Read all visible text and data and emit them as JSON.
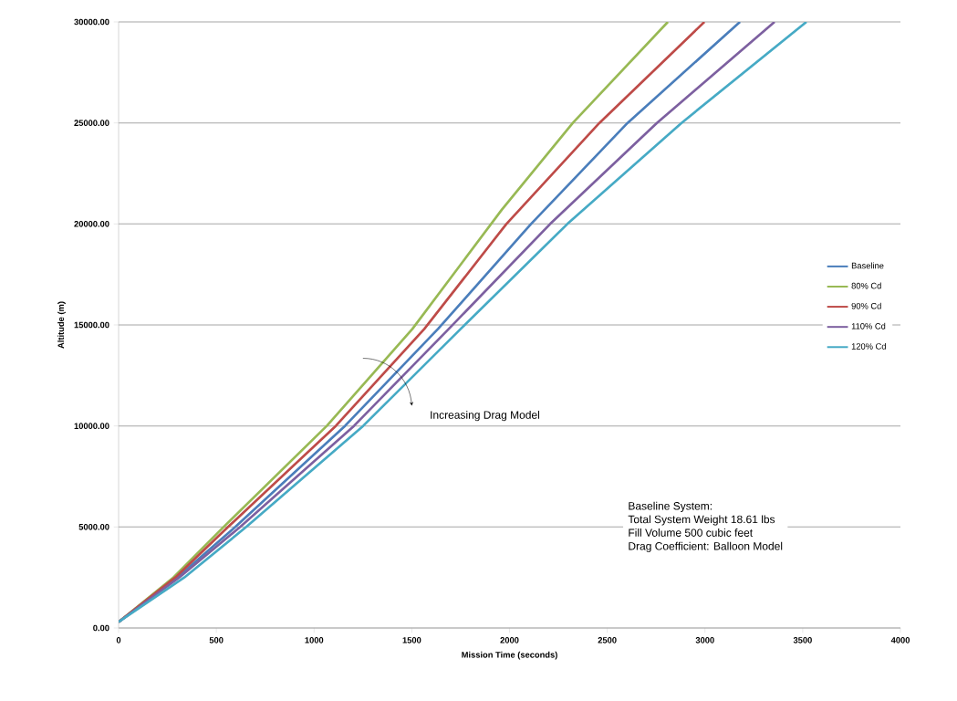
{
  "chart_data": {
    "type": "line",
    "xlabel": "Mission Time (seconds)",
    "ylabel": "Altitude (m)",
    "xlim": [
      0,
      4000
    ],
    "xticks": [
      0,
      500,
      1000,
      1500,
      2000,
      2500,
      3000,
      3500,
      4000
    ],
    "ylim": [
      0,
      30000
    ],
    "yticks": [
      {
        "value": 0,
        "label": "0.00"
      },
      {
        "value": 5000,
        "label": "5000.00"
      },
      {
        "value": 10000,
        "label": "10000.00"
      },
      {
        "value": 15000,
        "label": "15000.00"
      },
      {
        "value": 20000,
        "label": "20000.00"
      },
      {
        "value": 25000,
        "label": "25000.00"
      },
      {
        "value": 30000,
        "label": "30000.00"
      }
    ],
    "grid": "y",
    "legend": "right",
    "marker": "none",
    "line_style": "solid",
    "annotations": [
      "Increasing Drag Model",
      "Baseline System:",
      "Total System  Weight 18.61 lbs",
      "Fill Volume 500  cubic feet",
      "Drag Coefficient: Balloon Model"
    ],
    "series": [
      {
        "name": "Baseline",
        "color": "#4a7ebb",
        "x": [
          0,
          300,
          597,
          1158,
          1634,
          2110,
          2604,
          3179
        ],
        "values": [
          300,
          2500,
          5000,
          10000,
          14800,
          20000,
          25000,
          30000
        ]
      },
      {
        "name": "80% Cd",
        "color": "#98b954",
        "x": [
          0,
          280,
          537,
          1065,
          1503,
          1960,
          2324,
          2810
        ],
        "values": [
          300,
          2500,
          5000,
          10000,
          14800,
          20700,
          25000,
          30000
        ]
      },
      {
        "name": "90% Cd",
        "color": "#be4b48",
        "x": [
          0,
          290,
          560,
          1111,
          1564,
          1984,
          2460,
          2997
        ],
        "values": [
          300,
          2500,
          5000,
          10000,
          14800,
          20000,
          25000,
          30000
        ]
      },
      {
        "name": "110% Cd",
        "color": "#7d60a0",
        "x": [
          0,
          310,
          622,
          1204,
          1689,
          2208,
          2754,
          3356
        ],
        "values": [
          300,
          2500,
          5000,
          10000,
          14800,
          20000,
          25000,
          30000
        ]
      },
      {
        "name": "120% Cd",
        "color": "#46aac5",
        "x": [
          0,
          336,
          653,
          1251,
          1750,
          2296,
          2880,
          3519
        ],
        "values": [
          300,
          2500,
          5000,
          10000,
          14800,
          20000,
          25000,
          30000
        ]
      }
    ]
  }
}
